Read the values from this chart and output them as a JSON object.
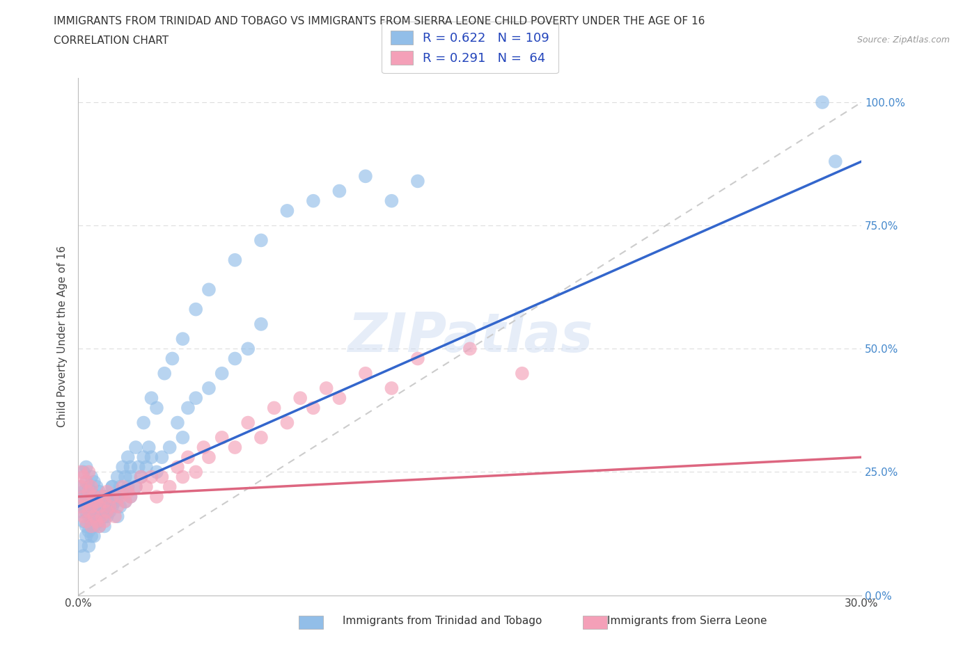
{
  "title_line1": "IMMIGRANTS FROM TRINIDAD AND TOBAGO VS IMMIGRANTS FROM SIERRA LEONE CHILD POVERTY UNDER THE AGE OF 16",
  "title_line2": "CORRELATION CHART",
  "source_text": "Source: ZipAtlas.com",
  "ylabel": "Child Poverty Under the Age of 16",
  "xlim": [
    0.0,
    0.3
  ],
  "ylim": [
    0.0,
    1.05
  ],
  "color_blue": "#92BEE8",
  "color_pink": "#F4A0B8",
  "line_blue": "#3366CC",
  "line_pink": "#DD6680",
  "line_dash_color": "#CCCCCC",
  "R1": 0.622,
  "N1": 109,
  "R2": 0.291,
  "N2": 64,
  "watermark": "ZIPatlas",
  "blue_line_x0": 0.0,
  "blue_line_y0": 0.18,
  "blue_line_x1": 0.3,
  "blue_line_y1": 0.88,
  "pink_line_x0": 0.0,
  "pink_line_y0": 0.2,
  "pink_line_x1": 0.3,
  "pink_line_y1": 0.28,
  "scatter_blue_x": [
    0.001,
    0.001,
    0.001,
    0.002,
    0.002,
    0.002,
    0.002,
    0.003,
    0.003,
    0.003,
    0.003,
    0.003,
    0.004,
    0.004,
    0.004,
    0.004,
    0.005,
    0.005,
    0.005,
    0.005,
    0.005,
    0.006,
    0.006,
    0.006,
    0.006,
    0.007,
    0.007,
    0.007,
    0.008,
    0.008,
    0.008,
    0.009,
    0.009,
    0.01,
    0.01,
    0.01,
    0.011,
    0.011,
    0.012,
    0.012,
    0.013,
    0.013,
    0.014,
    0.015,
    0.015,
    0.016,
    0.017,
    0.018,
    0.019,
    0.02,
    0.02,
    0.022,
    0.023,
    0.024,
    0.025,
    0.026,
    0.027,
    0.028,
    0.03,
    0.032,
    0.035,
    0.038,
    0.04,
    0.042,
    0.045,
    0.05,
    0.055,
    0.06,
    0.065,
    0.07,
    0.001,
    0.002,
    0.003,
    0.004,
    0.005,
    0.006,
    0.007,
    0.008,
    0.009,
    0.01,
    0.011,
    0.012,
    0.013,
    0.014,
    0.015,
    0.016,
    0.017,
    0.018,
    0.019,
    0.02,
    0.022,
    0.025,
    0.028,
    0.03,
    0.033,
    0.036,
    0.04,
    0.045,
    0.05,
    0.06,
    0.07,
    0.08,
    0.09,
    0.1,
    0.11,
    0.12,
    0.13,
    0.285,
    0.29
  ],
  "scatter_blue_y": [
    0.17,
    0.2,
    0.22,
    0.15,
    0.18,
    0.21,
    0.25,
    0.14,
    0.17,
    0.2,
    0.23,
    0.26,
    0.13,
    0.16,
    0.19,
    0.22,
    0.12,
    0.15,
    0.18,
    0.21,
    0.24,
    0.14,
    0.17,
    0.2,
    0.23,
    0.16,
    0.19,
    0.22,
    0.15,
    0.18,
    0.21,
    0.17,
    0.2,
    0.14,
    0.17,
    0.2,
    0.16,
    0.19,
    0.17,
    0.2,
    0.18,
    0.22,
    0.19,
    0.16,
    0.2,
    0.18,
    0.21,
    0.19,
    0.22,
    0.2,
    0.24,
    0.22,
    0.26,
    0.24,
    0.28,
    0.26,
    0.3,
    0.28,
    0.25,
    0.28,
    0.3,
    0.35,
    0.32,
    0.38,
    0.4,
    0.42,
    0.45,
    0.48,
    0.5,
    0.55,
    0.1,
    0.08,
    0.12,
    0.1,
    0.14,
    0.12,
    0.16,
    0.14,
    0.18,
    0.16,
    0.2,
    0.18,
    0.22,
    0.2,
    0.24,
    0.22,
    0.26,
    0.24,
    0.28,
    0.26,
    0.3,
    0.35,
    0.4,
    0.38,
    0.45,
    0.48,
    0.52,
    0.58,
    0.62,
    0.68,
    0.72,
    0.78,
    0.8,
    0.82,
    0.85,
    0.8,
    0.84,
    1.0,
    0.88
  ],
  "scatter_pink_x": [
    0.001,
    0.001,
    0.001,
    0.002,
    0.002,
    0.002,
    0.003,
    0.003,
    0.003,
    0.004,
    0.004,
    0.004,
    0.005,
    0.005,
    0.005,
    0.006,
    0.006,
    0.007,
    0.007,
    0.008,
    0.008,
    0.009,
    0.009,
    0.01,
    0.01,
    0.011,
    0.011,
    0.012,
    0.013,
    0.014,
    0.015,
    0.016,
    0.017,
    0.018,
    0.019,
    0.02,
    0.022,
    0.024,
    0.026,
    0.028,
    0.03,
    0.032,
    0.035,
    0.038,
    0.04,
    0.042,
    0.045,
    0.048,
    0.05,
    0.055,
    0.06,
    0.065,
    0.07,
    0.075,
    0.08,
    0.085,
    0.09,
    0.095,
    0.1,
    0.11,
    0.12,
    0.13,
    0.15,
    0.17
  ],
  "scatter_pink_y": [
    0.18,
    0.22,
    0.25,
    0.16,
    0.2,
    0.24,
    0.15,
    0.19,
    0.23,
    0.17,
    0.21,
    0.25,
    0.14,
    0.18,
    0.22,
    0.16,
    0.2,
    0.15,
    0.19,
    0.14,
    0.18,
    0.16,
    0.2,
    0.15,
    0.19,
    0.17,
    0.21,
    0.18,
    0.2,
    0.16,
    0.18,
    0.2,
    0.22,
    0.19,
    0.21,
    0.2,
    0.22,
    0.24,
    0.22,
    0.24,
    0.2,
    0.24,
    0.22,
    0.26,
    0.24,
    0.28,
    0.25,
    0.3,
    0.28,
    0.32,
    0.3,
    0.35,
    0.32,
    0.38,
    0.35,
    0.4,
    0.38,
    0.42,
    0.4,
    0.45,
    0.42,
    0.48,
    0.5,
    0.45
  ]
}
